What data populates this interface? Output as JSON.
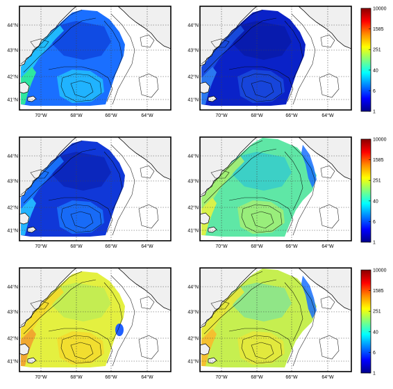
{
  "figure": {
    "lat_labels": [
      "44°N",
      "43°N",
      "42°N",
      "41°N"
    ],
    "lon_labels": [
      "70°W",
      "68°W",
      "66°W",
      "64°W"
    ],
    "colorbar_ticks": [
      "10000",
      "1585",
      "251",
      "40",
      "6",
      "1"
    ],
    "colorbar_gradient": [
      "#8b0000",
      "#ff0000",
      "#ff8c00",
      "#ffff00",
      "#7fff7f",
      "#00ffff",
      "#0080ff",
      "#0000ff",
      "#00008b"
    ]
  },
  "panels": [
    {
      "id": "r1c1",
      "level_label": "moderate-low",
      "fill_main": "#1a6fff",
      "fill_coast": "#22c4ff",
      "fill_shore": "#2ee6a0",
      "fill_deep": "#0d3fd9"
    },
    {
      "id": "r1c2",
      "level_label": "low",
      "fill_main": "#0a22c8",
      "fill_coast": "#1a4fe0",
      "fill_shore": "#2a78f0",
      "fill_deep": "#081aa6"
    },
    {
      "id": "r2c1",
      "level_label": "low-moderate",
      "fill_main": "#1038d8",
      "fill_coast": "#1a78ff",
      "fill_shore": "#23b4ff",
      "fill_deep": "#0a22b4"
    },
    {
      "id": "r2c2",
      "level_label": "moderate",
      "fill_main": "#5fe7a6",
      "fill_coast": "#a8f070",
      "fill_shore": "#d9f24a",
      "fill_deep": "#30c8d0"
    },
    {
      "id": "r3c1",
      "level_label": "high",
      "fill_main": "#e4f040",
      "fill_coast": "#f5d92a",
      "fill_shore": "#f0a830",
      "fill_deep": "#b9ec58"
    },
    {
      "id": "r3c2",
      "level_label": "moderate-high",
      "fill_main": "#c6ef50",
      "fill_coast": "#e9e738",
      "fill_shore": "#f4c030",
      "fill_deep": "#7ee39a"
    }
  ]
}
